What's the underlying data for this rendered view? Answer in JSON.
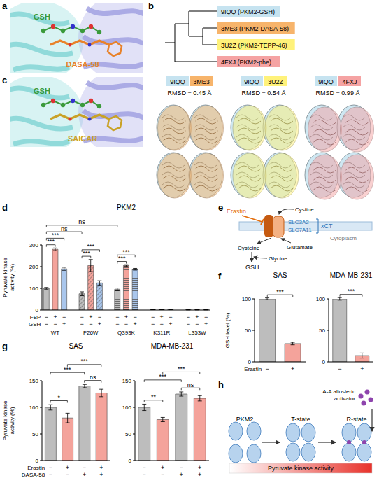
{
  "panel_letters": [
    "a",
    "b",
    "c",
    "d",
    "e",
    "f",
    "g",
    "h"
  ],
  "panel_a": {
    "ligands": [
      {
        "name": "GSH",
        "color": "#3a9a3a"
      },
      {
        "name": "DASA-58",
        "color": "#e8822a"
      }
    ]
  },
  "panel_b": {
    "tree": [
      {
        "id": "9IQQ",
        "label": "9IQQ (PKM2-GSH)",
        "color": "#c6e3f0"
      },
      {
        "id": "3ME3",
        "label": "3ME3 (PKM2-DASA-58)",
        "color": "#f7b46b"
      },
      {
        "id": "3U2Z",
        "label": "3U2Z (PKM2-TEPP-46)",
        "color": "#fff27a"
      },
      {
        "id": "4FXJ",
        "label": "4FXJ (PKM2-phe)",
        "color": "#f5a3a3"
      }
    ],
    "topology": [
      [
        0,
        [
          1,
          2
        ]
      ],
      3
    ],
    "comparisons": [
      {
        "pair": [
          0,
          1
        ],
        "rmsd": "RMSD = 0.45 Å"
      },
      {
        "pair": [
          0,
          2
        ],
        "rmsd": "RMSD = 0.54 Å"
      },
      {
        "pair": [
          0,
          3
        ],
        "rmsd": "RMSD = 0.99 Å"
      }
    ]
  },
  "panel_c": {
    "ligands": [
      {
        "name": "GSH",
        "color": "#3a9a3a"
      },
      {
        "name": "SAICAR",
        "color": "#c9a227"
      }
    ]
  },
  "panel_e": {
    "inhibitor": "Erastin",
    "transporter": [
      "SLC3A2",
      "SLC7A11"
    ],
    "complex": "xCT",
    "compartment": "Cytoplasm",
    "imported": "Cystine",
    "exported": "Glutamate",
    "intermediate": "Cysteine",
    "cofactor": "Glycine",
    "product": "GSH"
  },
  "panel_h": {
    "states": [
      "PKM2",
      "T-state",
      "R-state"
    ],
    "activator": "A-A allosteric activator",
    "gradient_label": "Pyruvate kinase activity"
  },
  "chart_data": [
    {
      "type": "bar",
      "title": "PKM2",
      "y_label": "Pyruvate kinase activity (%)",
      "groups": [
        "WT",
        "F26W",
        "Q393K",
        "K311R",
        "L353W"
      ],
      "rows": [
        {
          "label": "FBP",
          "values": [
            "−",
            "+",
            "−",
            "−",
            "+",
            "−",
            "−",
            "+",
            "−",
            "−",
            "+",
            "−",
            "−",
            "+",
            "−"
          ]
        },
        {
          "label": "GSH",
          "values": [
            "−",
            "−",
            "+",
            "−",
            "−",
            "+",
            "−",
            "−",
            "+",
            "−",
            "−",
            "+",
            "−",
            "−",
            "+"
          ]
        }
      ],
      "values": [
        100,
        280,
        190,
        75,
        205,
        125,
        95,
        205,
        188,
        2,
        2,
        2,
        1,
        1,
        1
      ],
      "errors": [
        4,
        6,
        7,
        9,
        28,
        10,
        6,
        4,
        4,
        0.5,
        0.5,
        0.5,
        0.5,
        0.5,
        0.5
      ],
      "colors": [
        "#bdbdbd",
        "#f4a39b",
        "#a9c6ec",
        "#bdbdbd",
        "#f4a39b",
        "#a9c6ec",
        "#bdbdbd",
        "#f4a39b",
        "#a9c6ec",
        "#bdbdbd",
        "#f4a39b",
        "#a9c6ec",
        "#bdbdbd",
        "#f4a39b",
        "#a9c6ec"
      ],
      "ylim": [
        0,
        300
      ],
      "yticks": [
        0,
        100,
        200,
        300
      ],
      "grid": false,
      "brackets": [
        {
          "from": 0,
          "to": 1,
          "label": "***"
        },
        {
          "from": 0,
          "to": 2,
          "label": "***"
        },
        {
          "from": 3,
          "to": 4,
          "label": "***"
        },
        {
          "from": 3,
          "to": 5,
          "label": "***"
        },
        {
          "from": 6,
          "to": 7,
          "label": "***"
        },
        {
          "from": 6,
          "to": 8,
          "label": "***"
        },
        {
          "from": 0,
          "to": 3,
          "label": "ns"
        },
        {
          "from": 0,
          "to": 6,
          "label": "ns"
        }
      ]
    },
    {
      "type": "bar",
      "title": "SAS",
      "y_label": "GSH level (%)",
      "rows": [
        {
          "label": "Erastin",
          "values": [
            "−",
            "+"
          ]
        }
      ],
      "values": [
        100,
        29
      ],
      "errors": [
        1.5,
        2
      ],
      "colors": [
        "#bdbdbd",
        "#f4a39b"
      ],
      "ylim": [
        0,
        100
      ],
      "yticks": [
        0,
        50,
        100
      ],
      "grid": false,
      "brackets": [
        {
          "from": 0,
          "to": 1,
          "label": "***"
        }
      ]
    },
    {
      "type": "bar",
      "title": "MDA-MB-231",
      "rows": [
        {
          "values": [
            "−",
            "+"
          ]
        }
      ],
      "values": [
        100,
        10
      ],
      "errors": [
        2,
        4
      ],
      "colors": [
        "#bdbdbd",
        "#f4a39b"
      ],
      "ylim": [
        0,
        100
      ],
      "yticks": [
        0,
        50,
        100
      ],
      "grid": false,
      "brackets": [
        {
          "from": 0,
          "to": 1,
          "label": "***"
        }
      ]
    },
    {
      "type": "bar",
      "title": "SAS",
      "y_label": "Pyruvate kinase activity (%)",
      "rows": [
        {
          "label": "Erastin",
          "values": [
            "−",
            "+",
            "−",
            "+"
          ]
        },
        {
          "label": "DASA-58",
          "values": [
            "−",
            "−",
            "+",
            "+"
          ]
        }
      ],
      "values": [
        100,
        80,
        140,
        127
      ],
      "errors": [
        5,
        9,
        3,
        7
      ],
      "colors": [
        "#bdbdbd",
        "#f4a39b",
        "#bdbdbd",
        "#f4a39b"
      ],
      "ylim": [
        0,
        150
      ],
      "yticks": [
        0,
        50,
        100,
        150
      ],
      "grid": false,
      "brackets": [
        {
          "from": 0,
          "to": 1,
          "label": "*"
        },
        {
          "from": 0,
          "to": 2,
          "label": "***"
        },
        {
          "from": 1,
          "to": 3,
          "label": "***"
        },
        {
          "from": 2,
          "to": 3,
          "label": "ns"
        }
      ]
    },
    {
      "type": "bar",
      "title": "MDA-MB-231",
      "rows": [
        {
          "values": [
            "−",
            "+",
            "−",
            "+"
          ]
        },
        {
          "values": [
            "−",
            "−",
            "+",
            "+"
          ]
        }
      ],
      "values": [
        100,
        77,
        125,
        117
      ],
      "errors": [
        6,
        4,
        4,
        5
      ],
      "colors": [
        "#bdbdbd",
        "#f4a39b",
        "#bdbdbd",
        "#f4a39b"
      ],
      "ylim": [
        0,
        150
      ],
      "yticks": [
        0,
        50,
        100,
        150
      ],
      "grid": false,
      "brackets": [
        {
          "from": 0,
          "to": 1,
          "label": "**"
        },
        {
          "from": 0,
          "to": 2,
          "label": "***"
        },
        {
          "from": 1,
          "to": 3,
          "label": "***"
        },
        {
          "from": 2,
          "to": 3,
          "label": "ns"
        }
      ]
    }
  ]
}
